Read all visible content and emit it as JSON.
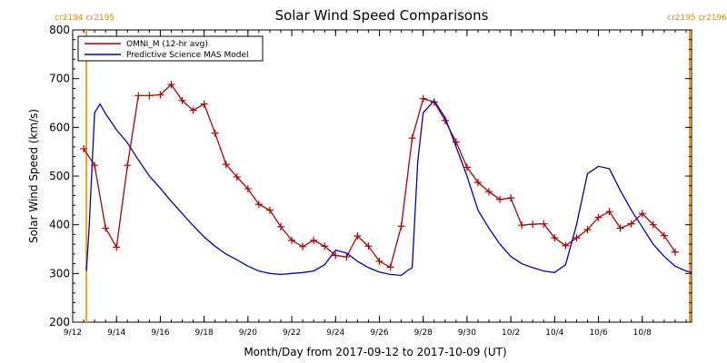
{
  "chart_data": {
    "type": "line",
    "title": "Solar Wind Speed Comparisons",
    "xlabel": "Month/Day from 2017-09-12 to 2017-10-09 (UT)",
    "ylabel": "Solar Wind Speed (km/s)",
    "xlim": [
      "2017-09-12T00:00",
      "2017-10-10T06:00"
    ],
    "ylim": [
      200,
      800
    ],
    "y_ticks": [
      200,
      300,
      400,
      500,
      600,
      700,
      800
    ],
    "x_ticks": [
      {
        "date": "2017-09-12",
        "label": "9/12"
      },
      {
        "date": "2017-09-14",
        "label": "9/14"
      },
      {
        "date": "2017-09-16",
        "label": "9/16"
      },
      {
        "date": "2017-09-18",
        "label": "9/18"
      },
      {
        "date": "2017-09-20",
        "label": "9/20"
      },
      {
        "date": "2017-09-22",
        "label": "9/22"
      },
      {
        "date": "2017-09-24",
        "label": "9/24"
      },
      {
        "date": "2017-09-26",
        "label": "9/26"
      },
      {
        "date": "2017-09-28",
        "label": "9/28"
      },
      {
        "date": "2017-09-30",
        "label": "9/30"
      },
      {
        "date": "2017-10-02",
        "label": "10/2"
      },
      {
        "date": "2017-10-04",
        "label": "10/4"
      },
      {
        "date": "2017-10-06",
        "label": "10/6"
      },
      {
        "date": "2017-10-08",
        "label": "10/8"
      }
    ],
    "legend_position": "top-left",
    "grid": false,
    "colors": {
      "axes": "#000000",
      "boundary": "#f5a020"
    },
    "carrington_markers": [
      {
        "date": "2017-09-12T15:00",
        "label": "cr2194 cr2195"
      },
      {
        "date": "2017-10-10T06:00",
        "label": "cr2195 cr2196"
      }
    ],
    "series": [
      {
        "name": "OMNI_M (12-hr avg)",
        "color": "#b00000",
        "marker": "plus",
        "x": [
          "2017-09-12T12:00",
          "2017-09-13T00:00",
          "2017-09-13T12:00",
          "2017-09-14T00:00",
          "2017-09-14T12:00",
          "2017-09-15T00:00",
          "2017-09-15T12:00",
          "2017-09-16T00:00",
          "2017-09-16T12:00",
          "2017-09-17T00:00",
          "2017-09-17T12:00",
          "2017-09-18T00:00",
          "2017-09-18T12:00",
          "2017-09-19T00:00",
          "2017-09-19T12:00",
          "2017-09-20T00:00",
          "2017-09-20T12:00",
          "2017-09-21T00:00",
          "2017-09-21T12:00",
          "2017-09-22T00:00",
          "2017-09-22T12:00",
          "2017-09-23T00:00",
          "2017-09-23T12:00",
          "2017-09-24T00:00",
          "2017-09-24T12:00",
          "2017-09-25T00:00",
          "2017-09-25T12:00",
          "2017-09-26T00:00",
          "2017-09-26T12:00",
          "2017-09-27T00:00",
          "2017-09-27T12:00",
          "2017-09-28T00:00",
          "2017-09-28T12:00",
          "2017-09-29T00:00",
          "2017-09-29T12:00",
          "2017-09-30T00:00",
          "2017-09-30T12:00",
          "2017-10-01T00:00",
          "2017-10-01T12:00",
          "2017-10-02T00:00",
          "2017-10-02T12:00",
          "2017-10-03T00:00",
          "2017-10-03T12:00",
          "2017-10-04T00:00",
          "2017-10-04T12:00",
          "2017-10-05T00:00",
          "2017-10-05T12:00",
          "2017-10-06T00:00",
          "2017-10-06T12:00",
          "2017-10-07T00:00",
          "2017-10-07T12:00",
          "2017-10-08T00:00",
          "2017-10-08T12:00",
          "2017-10-09T00:00",
          "2017-10-09T12:00"
        ],
        "y": [
          556,
          522,
          393,
          354,
          522,
          665,
          665,
          667,
          688,
          655,
          635,
          648,
          588,
          524,
          498,
          474,
          442,
          430,
          396,
          368,
          355,
          368,
          356,
          337,
          334,
          377,
          356,
          325,
          313,
          397,
          578,
          659,
          652,
          614,
          570,
          518,
          487,
          468,
          452,
          455,
          399,
          401,
          402,
          373,
          357,
          373,
          390,
          415,
          427,
          393,
          402,
          423,
          400,
          378,
          344
        ]
      },
      {
        "name": "Predictive Science MAS Model",
        "color": "#0000cc",
        "marker": "none",
        "x": [
          "2017-09-12T15:00",
          "2017-09-12T18:00",
          "2017-09-13T00:00",
          "2017-09-13T06:00",
          "2017-09-13T12:00",
          "2017-09-14T00:00",
          "2017-09-14T12:00",
          "2017-09-15T00:00",
          "2017-09-15T12:00",
          "2017-09-16T00:00",
          "2017-09-16T12:00",
          "2017-09-17T00:00",
          "2017-09-17T12:00",
          "2017-09-18T00:00",
          "2017-09-18T12:00",
          "2017-09-19T00:00",
          "2017-09-19T12:00",
          "2017-09-20T00:00",
          "2017-09-20T12:00",
          "2017-09-21T00:00",
          "2017-09-21T12:00",
          "2017-09-22T00:00",
          "2017-09-22T12:00",
          "2017-09-23T00:00",
          "2017-09-23T12:00",
          "2017-09-24T00:00",
          "2017-09-24T12:00",
          "2017-09-25T00:00",
          "2017-09-25T12:00",
          "2017-09-26T00:00",
          "2017-09-26T12:00",
          "2017-09-27T00:00",
          "2017-09-27T06:00",
          "2017-09-27T12:00",
          "2017-09-27T18:00",
          "2017-09-28T00:00",
          "2017-09-28T12:00",
          "2017-09-29T00:00",
          "2017-09-29T12:00",
          "2017-09-30T00:00",
          "2017-09-30T12:00",
          "2017-10-01T00:00",
          "2017-10-01T12:00",
          "2017-10-02T00:00",
          "2017-10-02T12:00",
          "2017-10-03T00:00",
          "2017-10-03T12:00",
          "2017-10-04T00:00",
          "2017-10-04T12:00",
          "2017-10-05T00:00",
          "2017-10-05T12:00",
          "2017-10-06T00:00",
          "2017-10-06T12:00",
          "2017-10-07T00:00",
          "2017-10-07T12:00",
          "2017-10-08T00:00",
          "2017-10-08T12:00",
          "2017-10-09T00:00",
          "2017-10-09T12:00",
          "2017-10-10T00:00",
          "2017-10-10T06:00"
        ],
        "y": [
          305,
          395,
          630,
          648,
          628,
          595,
          568,
          533,
          500,
          475,
          448,
          423,
          398,
          375,
          356,
          340,
          328,
          315,
          305,
          300,
          298,
          300,
          302,
          305,
          318,
          348,
          342,
          325,
          312,
          303,
          298,
          296,
          305,
          312,
          530,
          630,
          655,
          620,
          560,
          500,
          430,
          393,
          360,
          335,
          320,
          312,
          305,
          302,
          318,
          400,
          505,
          520,
          515,
          470,
          430,
          395,
          360,
          335,
          315,
          305,
          302
        ]
      }
    ]
  }
}
